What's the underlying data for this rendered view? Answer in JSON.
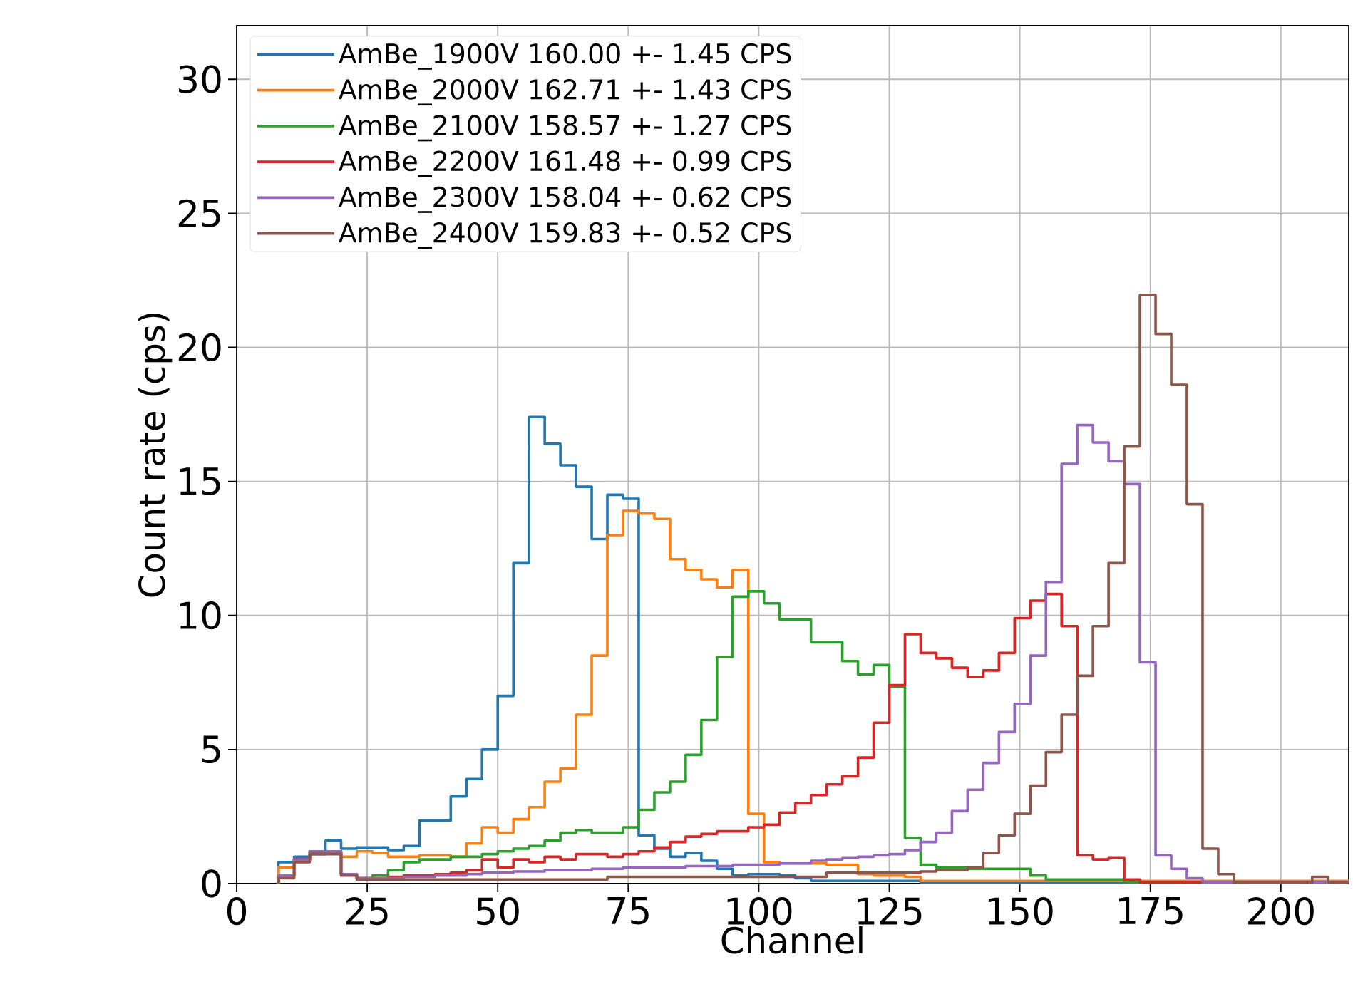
{
  "chart_data": {
    "type": "histogram",
    "xlabel": "Channel",
    "ylabel": "Count rate (cps)",
    "bins": [
      8,
      11,
      14,
      17,
      20,
      23,
      26,
      29,
      32,
      35,
      38,
      41,
      44,
      47,
      50,
      53,
      56,
      59,
      62,
      65,
      68,
      71,
      74,
      77,
      80,
      83,
      86,
      89,
      92,
      95,
      98,
      101,
      104,
      107,
      110,
      113,
      116,
      119,
      122,
      125,
      128,
      131,
      134,
      137,
      140,
      143,
      146,
      149,
      152,
      155,
      158,
      161,
      164,
      167,
      170,
      173,
      176,
      179,
      182,
      185,
      188,
      191,
      194,
      197,
      200,
      203,
      206,
      209,
      212,
      215
    ],
    "series": [
      {
        "name": "AmBe_1900V 160.00 +- 1.45 CPS",
        "color": "#1f77b4",
        "values": [
          0.8,
          1.0,
          1.1,
          1.6,
          1.3,
          1.35,
          1.35,
          1.25,
          1.4,
          2.35,
          2.35,
          3.25,
          3.9,
          5.0,
          7.0,
          11.95,
          17.4,
          16.4,
          15.6,
          14.8,
          12.85,
          14.5,
          14.35,
          1.8,
          1.3,
          1.0,
          1.15,
          0.85,
          0.55,
          0.3,
          0.35,
          0.35,
          0.3,
          0.2,
          0.1,
          0.1,
          0.1,
          0.1,
          0.1,
          0.1,
          0.1,
          0.05,
          0.05,
          0.05,
          0.05,
          0.05,
          0.05,
          0.05,
          0.05,
          0.05,
          0.05,
          0.05,
          0.05,
          0.05,
          0.05,
          0.05,
          0.05,
          0.05,
          0.05,
          0.05,
          0.05,
          0.05,
          0.05,
          0.05,
          0.05,
          0.05,
          0.05,
          0.05,
          0.05
        ]
      },
      {
        "name": "AmBe_2000V 162.71 +- 1.43 CPS",
        "color": "#ff7f0e",
        "values": [
          0.6,
          0.9,
          1.2,
          1.2,
          1.0,
          1.2,
          1.15,
          1.0,
          1.0,
          1.05,
          1.05,
          1.0,
          1.5,
          2.1,
          1.9,
          2.4,
          2.85,
          3.8,
          4.3,
          6.3,
          8.5,
          13.0,
          13.9,
          13.8,
          13.6,
          12.1,
          11.7,
          11.35,
          11.05,
          11.7,
          2.6,
          0.8,
          0.75,
          0.75,
          0.75,
          0.7,
          0.7,
          0.35,
          0.3,
          0.3,
          0.25,
          0.1,
          0.1,
          0.1,
          0.1,
          0.1,
          0.1,
          0.1,
          0.1,
          0.1,
          0.1,
          0.1,
          0.1,
          0.1,
          0.1,
          0.1,
          0.1,
          0.1,
          0.1,
          0.1,
          0.1,
          0.1,
          0.1,
          0.1,
          0.1,
          0.1,
          0.1,
          0.1,
          0.1
        ]
      },
      {
        "name": "AmBe_2100V 158.57 +- 1.27 CPS",
        "color": "#2ca02c",
        "values": [
          0.3,
          0.9,
          1.2,
          1.2,
          0.35,
          0.2,
          0.3,
          0.5,
          0.8,
          0.9,
          0.9,
          1.0,
          1.0,
          1.1,
          1.2,
          1.3,
          1.4,
          1.6,
          1.9,
          2.0,
          1.9,
          1.9,
          2.1,
          2.75,
          3.4,
          3.8,
          4.8,
          6.1,
          8.45,
          10.7,
          10.9,
          10.45,
          9.85,
          9.85,
          9.0,
          9.0,
          8.3,
          7.8,
          8.15,
          7.35,
          1.7,
          0.7,
          0.6,
          0.6,
          0.55,
          0.55,
          0.55,
          0.55,
          0.3,
          0.15,
          0.15,
          0.15,
          0.15,
          0.15,
          0.05,
          0.05,
          0.05,
          0.05,
          0.05,
          0.05,
          0.05,
          0.05,
          0.05,
          0.05,
          0.05,
          0.05,
          0.05,
          0.05,
          0.05
        ]
      },
      {
        "name": "AmBe_2200V 161.48 +- 0.99 CPS",
        "color": "#d62728",
        "values": [
          0.3,
          0.9,
          1.2,
          1.2,
          0.35,
          0.2,
          0.2,
          0.25,
          0.3,
          0.3,
          0.35,
          0.4,
          0.5,
          0.9,
          0.6,
          0.9,
          0.8,
          1.0,
          0.9,
          1.1,
          1.1,
          1.0,
          1.1,
          1.2,
          1.35,
          1.55,
          1.75,
          1.85,
          1.95,
          1.95,
          2.1,
          2.2,
          2.65,
          3.0,
          3.3,
          3.7,
          4.0,
          4.7,
          6.0,
          7.4,
          9.3,
          8.6,
          8.4,
          8.05,
          7.7,
          7.95,
          8.6,
          9.9,
          10.55,
          10.8,
          9.6,
          1.05,
          0.9,
          0.95,
          0.15,
          0.05,
          0.05,
          0.05,
          0.05,
          0.05,
          0.05,
          0.05,
          0.05,
          0.05,
          0.05,
          0.05,
          0.05,
          0.05,
          0.05
        ]
      },
      {
        "name": "AmBe_2300V 158.04 +- 0.62 CPS",
        "color": "#9467bd",
        "values": [
          0.3,
          0.9,
          1.2,
          1.2,
          0.35,
          0.2,
          0.2,
          0.2,
          0.25,
          0.25,
          0.3,
          0.3,
          0.35,
          0.4,
          0.4,
          0.45,
          0.45,
          0.5,
          0.5,
          0.5,
          0.55,
          0.55,
          0.6,
          0.6,
          0.6,
          0.6,
          0.65,
          0.65,
          0.65,
          0.7,
          0.7,
          0.7,
          0.75,
          0.75,
          0.85,
          0.9,
          0.95,
          1.0,
          1.05,
          1.1,
          1.25,
          1.55,
          1.9,
          2.7,
          3.5,
          4.5,
          5.65,
          6.7,
          8.5,
          11.25,
          15.65,
          17.1,
          16.45,
          15.75,
          14.9,
          8.25,
          1.05,
          0.55,
          0.2,
          0.05,
          0.05,
          0.05,
          0.05,
          0.05,
          0.05,
          0.05,
          0.05,
          0.05,
          0.05
        ]
      },
      {
        "name": "AmBe_2400V 159.83 +- 0.52 CPS",
        "color": "#8c564b",
        "values": [
          0.2,
          0.8,
          1.1,
          1.1,
          0.3,
          0.15,
          0.15,
          0.15,
          0.15,
          0.15,
          0.15,
          0.15,
          0.15,
          0.15,
          0.15,
          0.15,
          0.15,
          0.15,
          0.15,
          0.15,
          0.15,
          0.25,
          0.25,
          0.25,
          0.25,
          0.25,
          0.25,
          0.25,
          0.25,
          0.25,
          0.25,
          0.25,
          0.25,
          0.25,
          0.25,
          0.4,
          0.4,
          0.4,
          0.4,
          0.4,
          0.4,
          0.45,
          0.5,
          0.5,
          0.6,
          1.15,
          1.8,
          2.6,
          3.65,
          4.9,
          6.3,
          7.75,
          9.6,
          11.95,
          16.3,
          21.95,
          20.5,
          18.6,
          14.15,
          1.3,
          0.35,
          0.05,
          0.05,
          0.05,
          0.05,
          0.05,
          0.25,
          0.05,
          0.05
        ]
      }
    ],
    "xlim": [
      0,
      213
    ],
    "ylim": [
      0,
      32
    ],
    "xticks": [
      0,
      25,
      50,
      75,
      100,
      125,
      150,
      175,
      200
    ],
    "yticks": [
      0,
      5,
      10,
      15,
      20,
      25,
      30
    ],
    "grid": true,
    "legend": "top left"
  }
}
